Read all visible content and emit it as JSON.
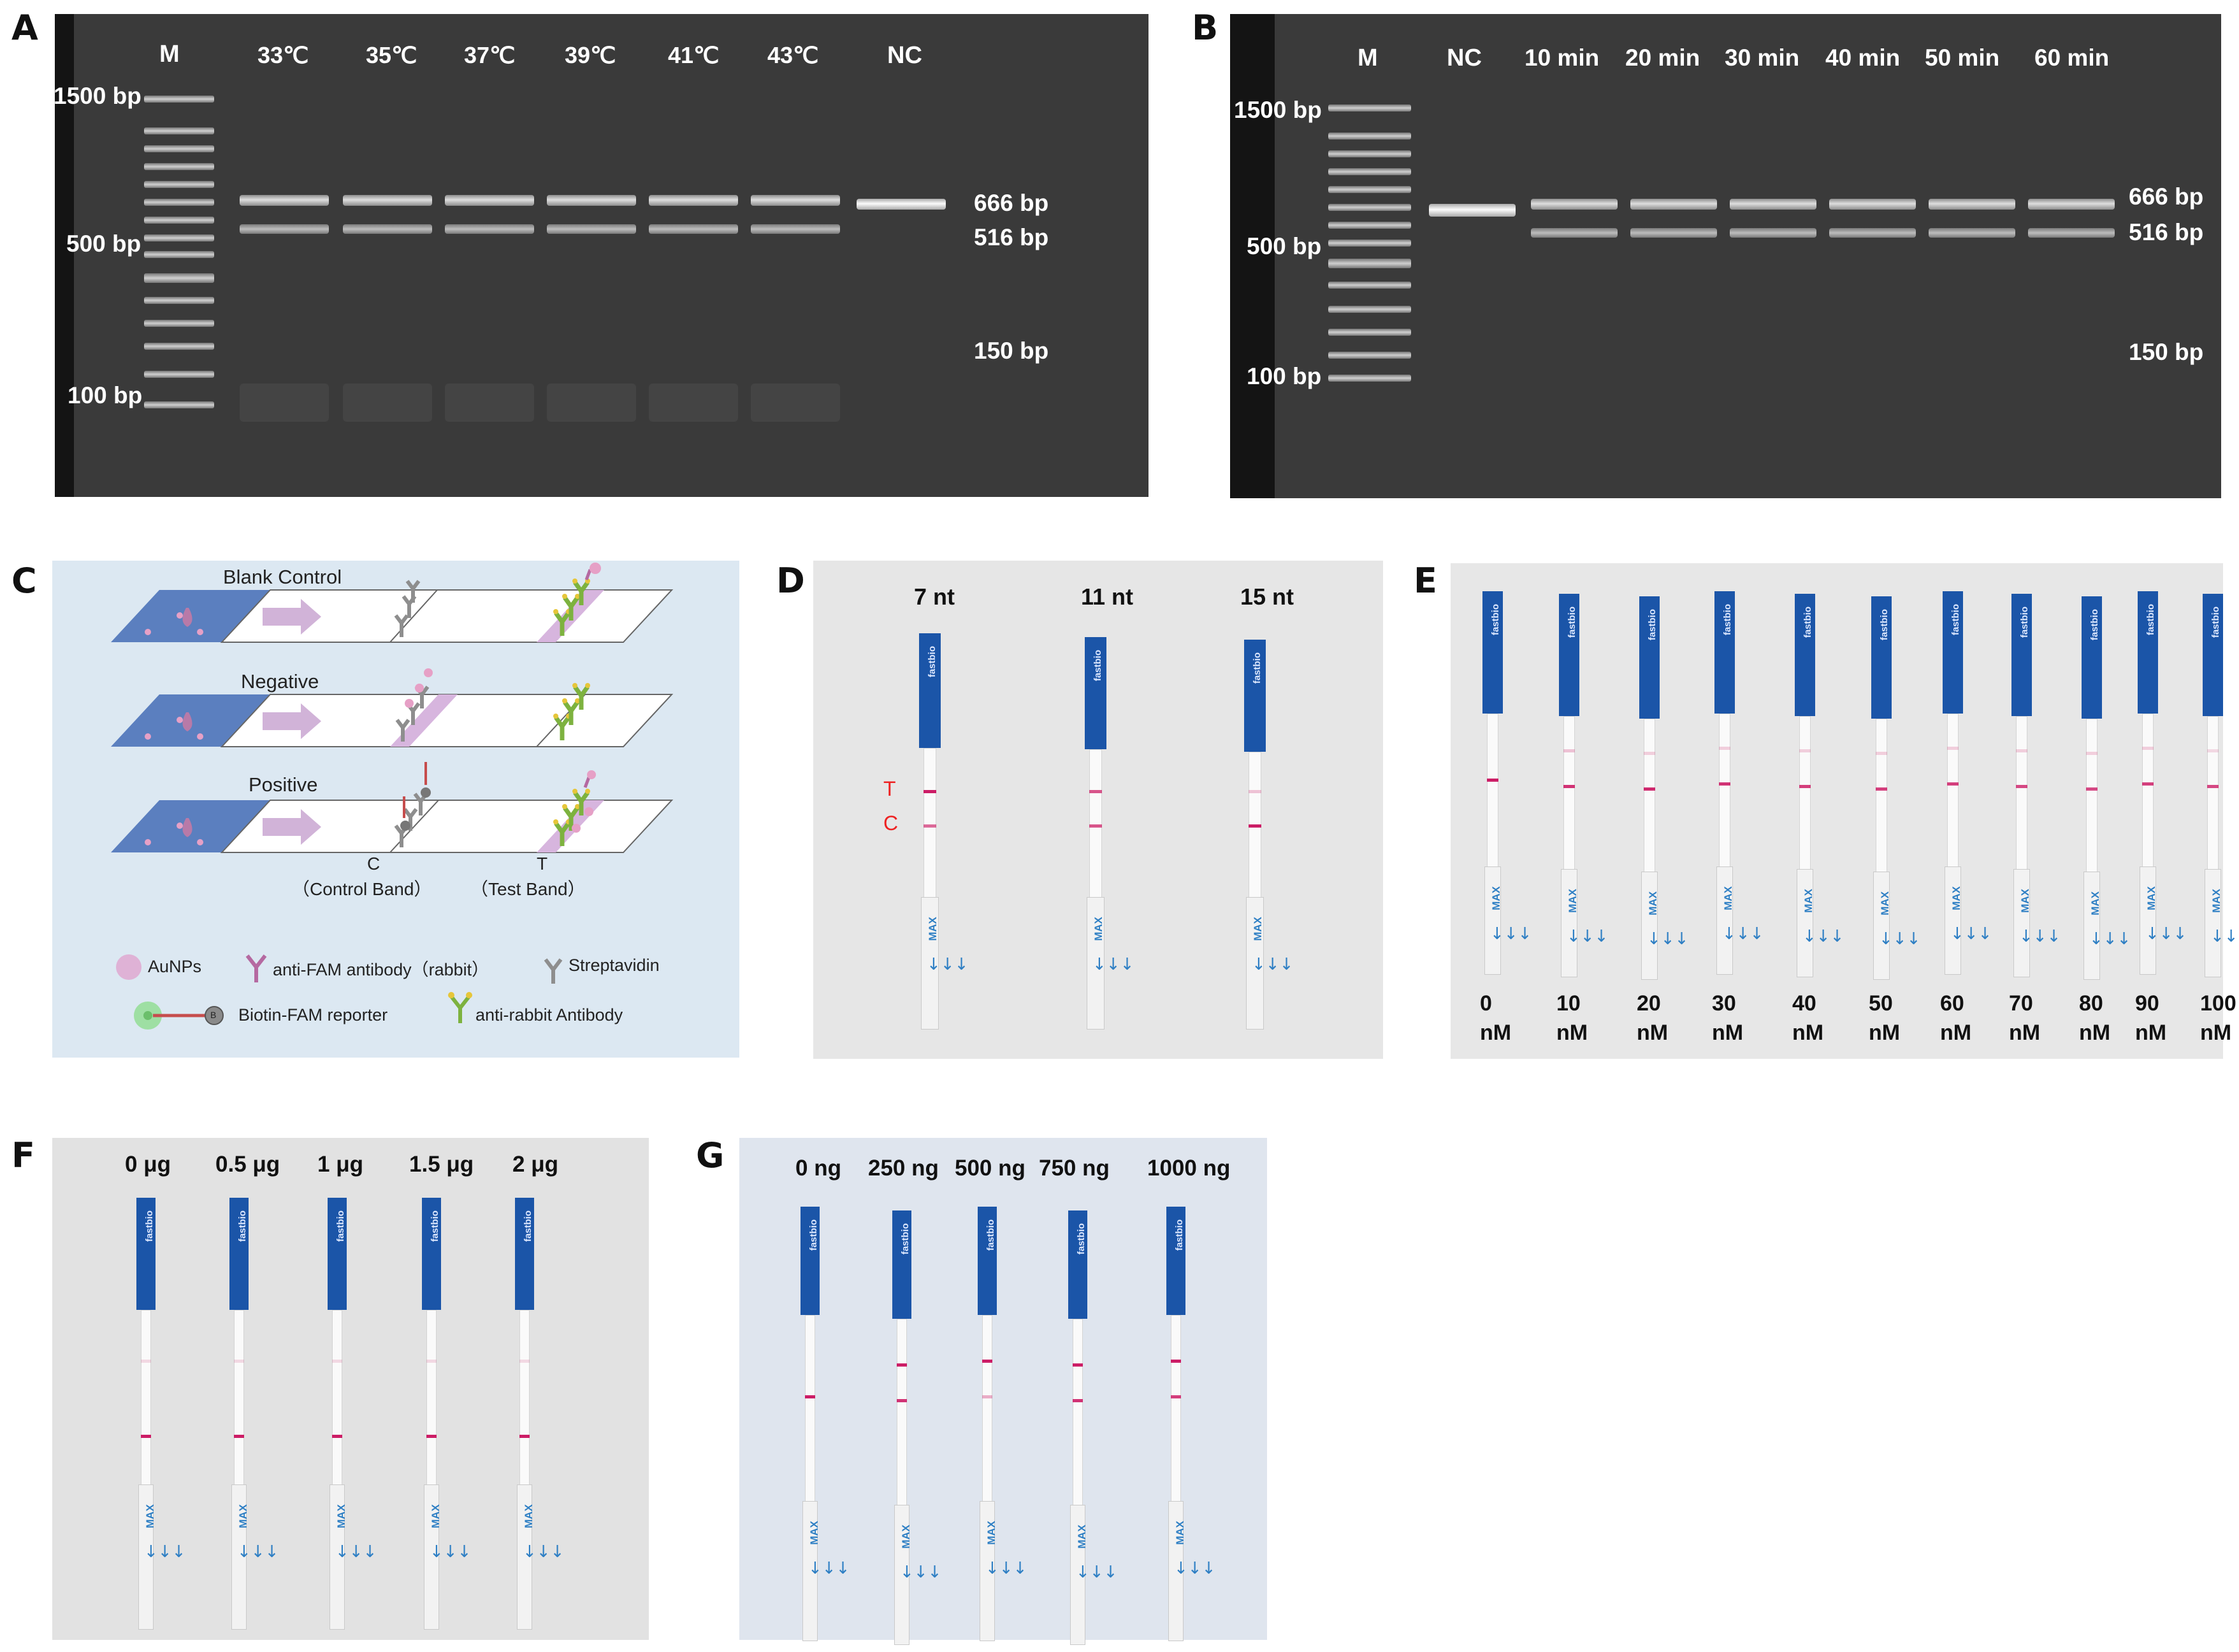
{
  "panel_labels": {
    "A": "A",
    "B": "B",
    "C": "C",
    "D": "D",
    "E": "E",
    "F": "F",
    "G": "G"
  },
  "gel_a": {
    "marker_label": "M",
    "lanes": [
      "33℃",
      "35℃",
      "37℃",
      "39℃",
      "41℃",
      "43℃",
      "NC"
    ],
    "ladder_labels": [
      "1500 bp",
      "500 bp",
      "100 bp"
    ],
    "size_labels": [
      "666 bp",
      "516 bp",
      "150 bp"
    ]
  },
  "gel_b": {
    "marker_label": "M",
    "lanes": [
      "NC",
      "10 min",
      "20 min",
      "30 min",
      "40 min",
      "50 min",
      "60 min"
    ],
    "ladder_labels": [
      "1500 bp",
      "500 bp",
      "100 bp"
    ],
    "size_labels": [
      "666 bp",
      "516 bp",
      "150 bp"
    ]
  },
  "schematic": {
    "rows": [
      "Blank Control",
      "Negative",
      "Positive"
    ],
    "c_letter": "C",
    "t_letter": "T",
    "c_caption": "（Control Band）",
    "t_caption": "（Test Band）",
    "legend": {
      "aunps": "AuNPs",
      "anti_fam": "anti-FAM antibody（rabbit）",
      "streptavidin": "Streptavidin",
      "biotin_fam": "Biotin-FAM reporter",
      "anti_rabbit": "anti-rabbit Antibody",
      "biotin_symbol": "B"
    }
  },
  "panel_d": {
    "labels": [
      "7 nt",
      "11 nt",
      "15 nt"
    ],
    "t_marker": "T",
    "c_marker": "C"
  },
  "panel_e": {
    "values": [
      "0",
      "10",
      "20",
      "30",
      "40",
      "50",
      "60",
      "70",
      "80",
      "90",
      "100"
    ],
    "unit": "nM"
  },
  "panel_f": {
    "labels": [
      "0 μg",
      "0.5 μg",
      "1 μg",
      "1.5 μg",
      "2 μg"
    ]
  },
  "panel_g": {
    "labels": [
      "0 ng",
      "250 ng",
      "500 ng",
      "750 ng",
      "1000 ng"
    ]
  },
  "strip_text": {
    "brand": "fastbio",
    "max": "MAX",
    "arrows": "↓↓↓"
  },
  "colors": {
    "strip_cap": "#1b55a8",
    "test_line": "#cc1d66",
    "gel_bg": "#3a3a3a",
    "schematic_bg": "#dce8f2"
  }
}
